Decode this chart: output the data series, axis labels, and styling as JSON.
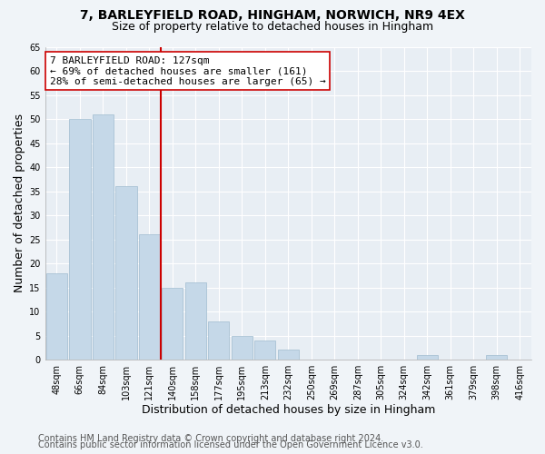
{
  "title": "7, BARLEYFIELD ROAD, HINGHAM, NORWICH, NR9 4EX",
  "subtitle": "Size of property relative to detached houses in Hingham",
  "xlabel": "Distribution of detached houses by size in Hingham",
  "ylabel": "Number of detached properties",
  "bar_labels": [
    "48sqm",
    "66sqm",
    "84sqm",
    "103sqm",
    "121sqm",
    "140sqm",
    "158sqm",
    "177sqm",
    "195sqm",
    "213sqm",
    "232sqm",
    "250sqm",
    "269sqm",
    "287sqm",
    "305sqm",
    "324sqm",
    "342sqm",
    "361sqm",
    "379sqm",
    "398sqm",
    "416sqm"
  ],
  "bar_values": [
    18,
    50,
    51,
    36,
    26,
    15,
    16,
    8,
    5,
    4,
    2,
    0,
    0,
    0,
    0,
    0,
    1,
    0,
    0,
    1,
    0
  ],
  "bar_color": "#c5d8e8",
  "bar_edge_color": "#a0bcd0",
  "vline_idx": 4,
  "vline_color": "#cc0000",
  "annotation_line1": "7 BARLEYFIELD ROAD: 127sqm",
  "annotation_line2": "← 69% of detached houses are smaller (161)",
  "annotation_line3": "28% of semi-detached houses are larger (65) →",
  "annotation_box_color": "#ffffff",
  "annotation_box_edge": "#cc0000",
  "ylim": [
    0,
    65
  ],
  "yticks": [
    0,
    5,
    10,
    15,
    20,
    25,
    30,
    35,
    40,
    45,
    50,
    55,
    60,
    65
  ],
  "footer_line1": "Contains HM Land Registry data © Crown copyright and database right 2024.",
  "footer_line2": "Contains public sector information licensed under the Open Government Licence v3.0.",
  "bg_color": "#f0f4f8",
  "plot_bg_color": "#e8eef4",
  "grid_color": "#ffffff",
  "title_fontsize": 10,
  "subtitle_fontsize": 9,
  "axis_label_fontsize": 9,
  "tick_fontsize": 7,
  "annotation_fontsize": 8,
  "footer_fontsize": 7
}
